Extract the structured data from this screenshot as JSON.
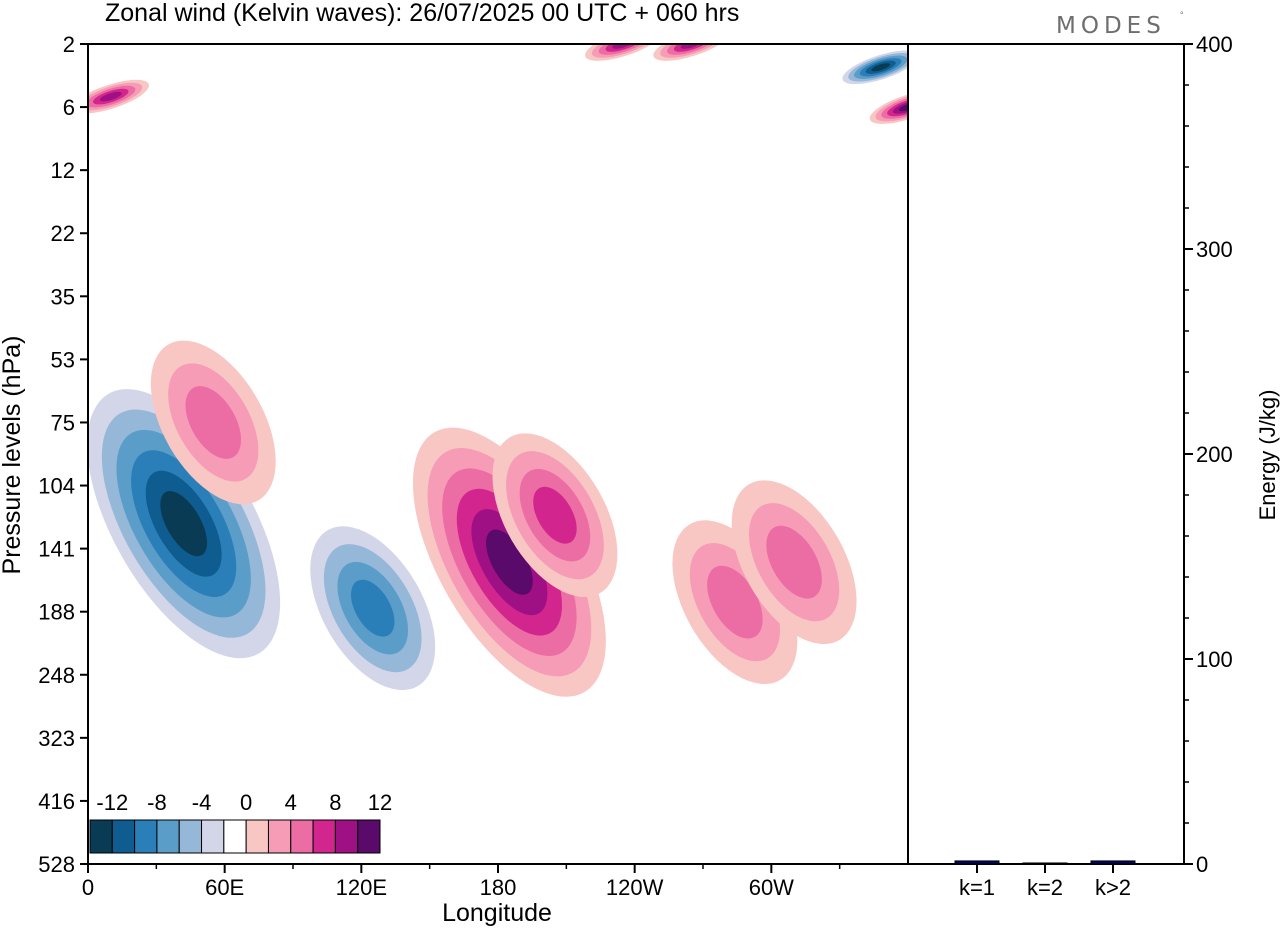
{
  "chart_data": [
    {
      "type": "heatmap",
      "title": "Zonal wind (Kelvin waves):  26/07/2025  00 UTC  + 060 hrs",
      "xlabel": "Longitude",
      "ylabel": "Pressure levels (hPa)",
      "x_ticks": [
        "0",
        "60E",
        "120E",
        "180",
        "120W",
        "60W"
      ],
      "y_ticks": [
        "2",
        "6",
        "12",
        "22",
        "35",
        "53",
        "75",
        "104",
        "141",
        "188",
        "248",
        "323",
        "416",
        "528"
      ],
      "colorbar": {
        "tick_labels": [
          "-12",
          "-8",
          "-4",
          "0",
          "4",
          "8",
          "12"
        ],
        "levels": [
          -14,
          -12,
          -10,
          -8,
          -6,
          -4,
          -2,
          2,
          4,
          6,
          8,
          10,
          12,
          14
        ],
        "colors": [
          "#0a3b55",
          "#0f5d90",
          "#2a7fb8",
          "#5b9dc9",
          "#95b8d9",
          "#d3d6e8",
          "#ffffff",
          "#f8c7c4",
          "#f69cb6",
          "#ec6da4",
          "#d3258e",
          "#9f1085",
          "#5a0a6a"
        ]
      },
      "features": [
        {
          "sign": "negative",
          "peak": -14,
          "lon": 42,
          "level_hPa": 125
        },
        {
          "sign": "negative",
          "peak": -8,
          "lon": 125,
          "level_hPa": 185
        },
        {
          "sign": "positive",
          "peak": 12,
          "lon": 185,
          "level_hPa": 150
        },
        {
          "sign": "positive",
          "peak": 8,
          "lon": 205,
          "level_hPa": 120
        },
        {
          "sign": "positive",
          "peak": 6,
          "lon": 284,
          "level_hPa": 180
        },
        {
          "sign": "positive",
          "peak": 6,
          "lon": 310,
          "level_hPa": 150
        },
        {
          "sign": "positive",
          "peak": 6,
          "lon": 55,
          "level_hPa": 75
        },
        {
          "sign": "positive",
          "peak": 12,
          "lon": 360,
          "level_hPa": 6
        },
        {
          "sign": "negative",
          "peak": -12,
          "lon": 348,
          "level_hPa": 3
        },
        {
          "sign": "positive",
          "peak": 10,
          "lon": 10,
          "level_hPa": 5
        },
        {
          "sign": "positive",
          "peak": 10,
          "lon": 235,
          "level_hPa": 2
        },
        {
          "sign": "positive",
          "peak": 10,
          "lon": 265,
          "level_hPa": 2
        }
      ]
    },
    {
      "type": "bar",
      "categories": [
        "k=1",
        "k=2",
        "k>2"
      ],
      "values": [
        1.5,
        0.5,
        1.5
      ],
      "ylabel": "Energy (J/kg)",
      "ylim": [
        0,
        400
      ],
      "y_ticks": [
        "0",
        "100",
        "200",
        "300",
        "400"
      ],
      "bar_color": "#00007a"
    }
  ],
  "brand": {
    "logo": "MODES"
  }
}
